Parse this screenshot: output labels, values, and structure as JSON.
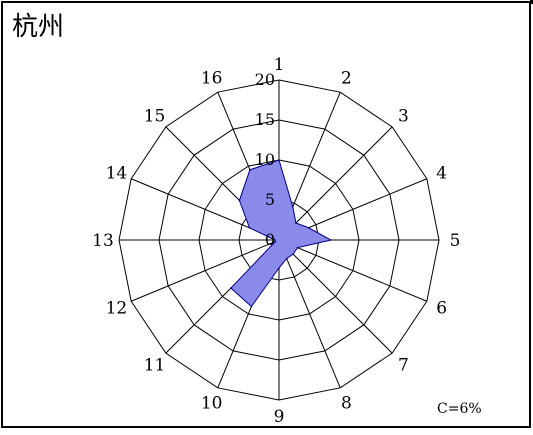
{
  "chart_data": {
    "type": "radar",
    "title": "杭州",
    "calm_note": "C=6%",
    "directions": [
      "1",
      "2",
      "3",
      "4",
      "5",
      "6",
      "7",
      "8",
      "9",
      "10",
      "11",
      "12",
      "13",
      "14",
      "15",
      "16"
    ],
    "ring_values": [
      0,
      5,
      10,
      15,
      20
    ],
    "ring_labels": [
      "0",
      "5",
      "10",
      "15",
      "20"
    ],
    "rmax": 20,
    "series": [
      {
        "values": [
          10,
          4.5,
          3,
          4,
          6.5,
          2.5,
          2.5,
          2.5,
          3.5,
          9,
          8.5,
          0.5,
          0.5,
          4,
          7,
          9.5
        ],
        "fill": "#8a8aea",
        "stroke": "#000080"
      }
    ],
    "grid": true
  }
}
